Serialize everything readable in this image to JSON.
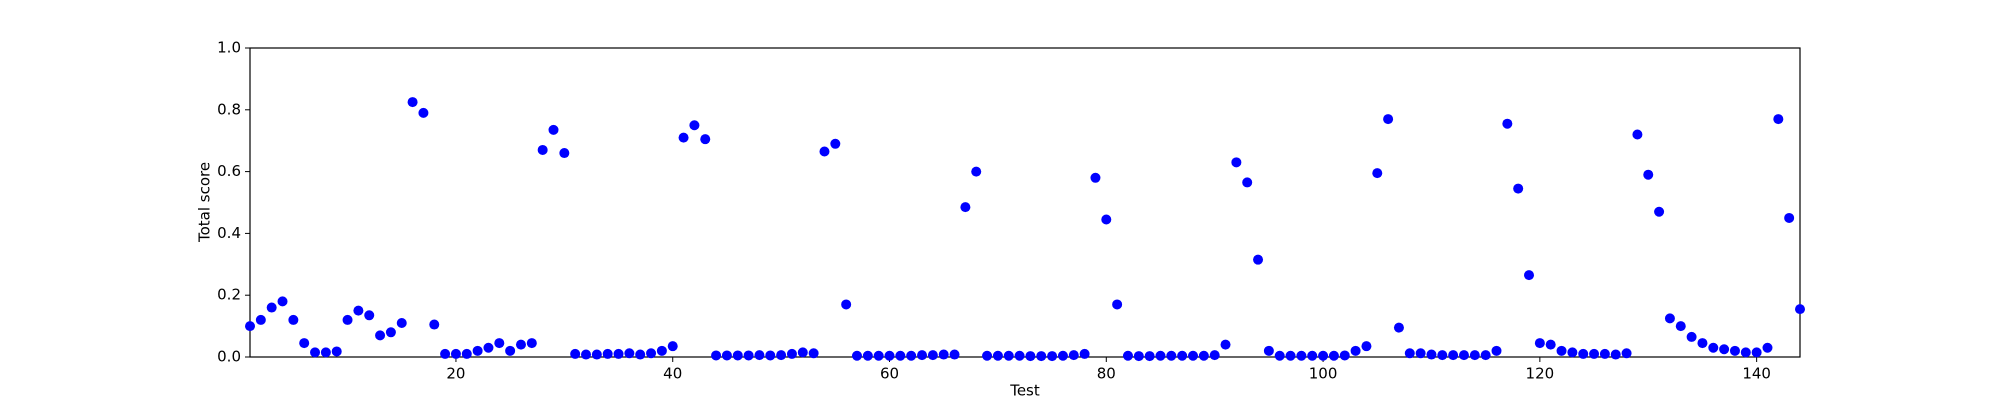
{
  "chart_data": {
    "type": "scatter",
    "xlabel": "Test",
    "ylabel": "Total score",
    "color": "#0000ff",
    "x": [
      1,
      2,
      3,
      4,
      5,
      6,
      7,
      8,
      9,
      10,
      11,
      12,
      13,
      14,
      15,
      16,
      17,
      18,
      19,
      20,
      21,
      22,
      23,
      24,
      25,
      26,
      27,
      28,
      29,
      30,
      31,
      32,
      33,
      34,
      35,
      36,
      37,
      38,
      39,
      40,
      41,
      42,
      43,
      44,
      45,
      46,
      47,
      48,
      49,
      50,
      51,
      52,
      53,
      54,
      55,
      56,
      57,
      58,
      59,
      60,
      61,
      62,
      63,
      64,
      65,
      66,
      67,
      68,
      69,
      70,
      71,
      72,
      73,
      74,
      75,
      76,
      77,
      78,
      79,
      80,
      81,
      82,
      83,
      84,
      85,
      86,
      87,
      88,
      89,
      90,
      91,
      92,
      93,
      94,
      95,
      96,
      97,
      98,
      99,
      100,
      101,
      102,
      103,
      104,
      105,
      106,
      107,
      108,
      109,
      110,
      111,
      112,
      113,
      114,
      115,
      116,
      117,
      118,
      119,
      120,
      121,
      122,
      123,
      124,
      125,
      126,
      127,
      128,
      129,
      130,
      131,
      132,
      133,
      134,
      135,
      136,
      137,
      138,
      139,
      140,
      141,
      142,
      143,
      144
    ],
    "values": [
      0.1,
      0.12,
      0.16,
      0.18,
      0.12,
      0.045,
      0.015,
      0.015,
      0.018,
      0.12,
      0.15,
      0.135,
      0.07,
      0.08,
      0.11,
      0.825,
      0.79,
      0.105,
      0.01,
      0.01,
      0.01,
      0.02,
      0.03,
      0.045,
      0.02,
      0.04,
      0.045,
      0.67,
      0.735,
      0.66,
      0.01,
      0.008,
      0.008,
      0.01,
      0.01,
      0.012,
      0.008,
      0.012,
      0.02,
      0.035,
      0.71,
      0.75,
      0.705,
      0.005,
      0.005,
      0.005,
      0.005,
      0.006,
      0.005,
      0.006,
      0.01,
      0.015,
      0.012,
      0.665,
      0.69,
      0.17,
      0.004,
      0.004,
      0.004,
      0.004,
      0.004,
      0.004,
      0.006,
      0.006,
      0.008,
      0.008,
      0.485,
      0.6,
      0.004,
      0.004,
      0.004,
      0.004,
      0.003,
      0.003,
      0.003,
      0.004,
      0.006,
      0.01,
      0.58,
      0.445,
      0.17,
      0.004,
      0.003,
      0.003,
      0.004,
      0.004,
      0.004,
      0.004,
      0.004,
      0.006,
      0.04,
      0.63,
      0.565,
      0.315,
      0.02,
      0.004,
      0.004,
      0.004,
      0.004,
      0.004,
      0.004,
      0.005,
      0.02,
      0.035,
      0.595,
      0.77,
      0.095,
      0.012,
      0.012,
      0.008,
      0.006,
      0.006,
      0.006,
      0.006,
      0.006,
      0.02,
      0.755,
      0.545,
      0.265,
      0.045,
      0.04,
      0.02,
      0.015,
      0.01,
      0.01,
      0.01,
      0.008,
      0.012,
      0.72,
      0.59,
      0.47,
      0.125,
      0.1,
      0.065,
      0.045,
      0.03,
      0.025,
      0.02,
      0.015,
      0.015,
      0.03,
      0.77,
      0.45,
      0.155
    ],
    "xlim": [
      1,
      144
    ],
    "xticks": [
      20,
      40,
      60,
      80,
      100,
      120,
      140
    ],
    "ylim": [
      0,
      1
    ],
    "yticks": [
      {
        "value": 0,
        "label": "0.0"
      },
      {
        "value": 0.2,
        "label": "0.2"
      },
      {
        "value": 0.4,
        "label": "0.4"
      },
      {
        "value": 0.6,
        "label": "0.6"
      },
      {
        "value": 0.8,
        "label": "0.8"
      },
      {
        "value": 1,
        "label": "1.0"
      }
    ]
  }
}
